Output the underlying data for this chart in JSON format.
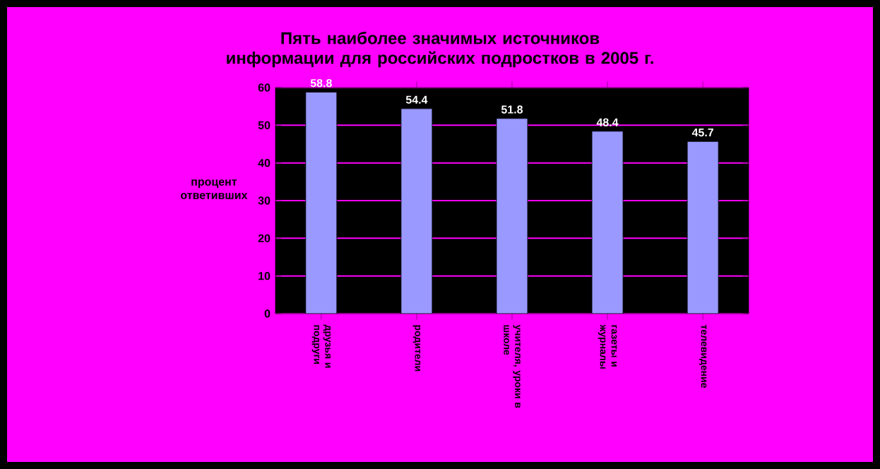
{
  "chart_data": {
    "type": "bar",
    "title": "Пять наиболее значимых источников информации для российских подростков в 2005 г.",
    "ylabel": "процент ответивших",
    "categories": [
      "друзья и подруги",
      "родители",
      "учителя, уроки в школе",
      "газеты и журналы",
      "телевидение"
    ],
    "values": [
      58.8,
      54.4,
      51.8,
      48.4,
      45.7
    ],
    "color": "#9999ff",
    "data_labels": true,
    "grid": "y",
    "ylim": [
      0,
      60
    ],
    "yticks": [
      0,
      10,
      20,
      30,
      40,
      50,
      60
    ]
  }
}
